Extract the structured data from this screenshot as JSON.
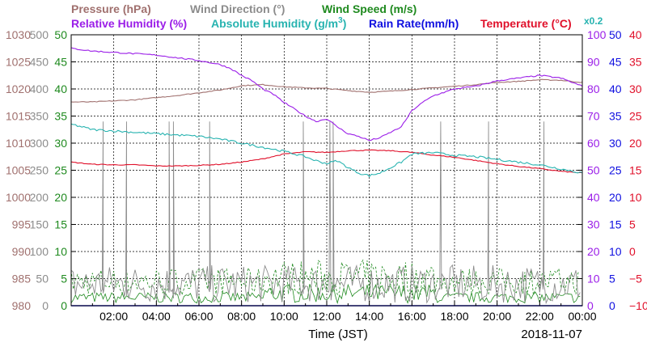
{
  "legend": {
    "pressure": {
      "label": "Pressure (hPa)",
      "color": "#a0706e"
    },
    "wind_direction": {
      "label": "Wind Direction (°)",
      "color": "#8c8c8c"
    },
    "wind_speed": {
      "label": "Wind Speed (m/s)",
      "color": "#1f8a1f"
    },
    "relative_humidity": {
      "label": "Relative Humidity (%)",
      "color": "#9b1ee8"
    },
    "absolute_humidity_prefix": {
      "label": "Absolute Humidity (g/m",
      "color": "#27b3b0"
    },
    "absolute_humidity_sup": {
      "label": "3",
      "color": "#27b3b0"
    },
    "absolute_humidity_suffix": {
      "label": ")",
      "color": "#27b3b0"
    },
    "rain_rate": {
      "label": "Rain Rate(mm/h)",
      "color": "#1010e0"
    },
    "temperature": {
      "label": "Temperature (°C)",
      "color": "#e0102a"
    },
    "ah_scale": {
      "label": "x0.2",
      "color": "#27b3b0"
    }
  },
  "footer": {
    "xlabel": "Time (JST)",
    "date": "2018-11-07"
  },
  "chart_data": {
    "type": "line",
    "x_unit": "hours (JST)",
    "xlim": [
      0,
      24
    ],
    "x_ticks": [
      "02:00",
      "04:00",
      "06:00",
      "08:00",
      "10:00",
      "12:00",
      "14:00",
      "16:00",
      "18:00",
      "20:00",
      "22:00",
      "00:00"
    ],
    "grid": true,
    "axes": {
      "pressure": {
        "range": [
          980,
          1030
        ],
        "ticks": [
          "1030",
          "1025",
          "1020",
          "1015",
          "1010",
          "1005",
          "1000",
          "995",
          "990",
          "985",
          "980"
        ],
        "color": "#a0706e"
      },
      "wind_direction": {
        "range": [
          0,
          500
        ],
        "ticks": [
          "500",
          "450",
          "400",
          "350",
          "300",
          "250",
          "200",
          "150",
          "100",
          "50",
          "0"
        ],
        "color": "#8c8c8c"
      },
      "wind_speed": {
        "range": [
          0,
          50
        ],
        "ticks": [
          "50",
          "45",
          "40",
          "35",
          "30",
          "25",
          "20",
          "15",
          "10",
          "5",
          "0"
        ],
        "color": "#1f8a1f"
      },
      "humidity": {
        "range": [
          0,
          100
        ],
        "ticks": [
          "100",
          "90",
          "80",
          "70",
          "60",
          "50",
          "40",
          "30",
          "20",
          "10",
          "0"
        ],
        "color": "#9b1ee8"
      },
      "rain_rate": {
        "range": [
          0,
          50
        ],
        "ticks": [
          "50",
          "45",
          "40",
          "35",
          "30",
          "25",
          "20",
          "15",
          "10",
          "5",
          "0"
        ],
        "color": "#1010e0"
      },
      "temperature": {
        "range": [
          -10,
          40
        ],
        "ticks": [
          "40",
          "35",
          "30",
          "25",
          "20",
          "15",
          "10",
          "5",
          "0",
          "−5",
          "−10"
        ],
        "color": "#e0102a"
      }
    },
    "series": [
      {
        "name": "Pressure (hPa)",
        "axis": "pressure",
        "color": "#a0706e",
        "points": [
          [
            0,
            1017.6
          ],
          [
            1,
            1017.6
          ],
          [
            2,
            1017.8
          ],
          [
            3,
            1018.0
          ],
          [
            4,
            1018.4
          ],
          [
            5,
            1018.8
          ],
          [
            6,
            1019.3
          ],
          [
            7,
            1019.8
          ],
          [
            8,
            1020.6
          ],
          [
            9,
            1020.8
          ],
          [
            10,
            1020.4
          ],
          [
            11,
            1020.2
          ],
          [
            12,
            1020.1
          ],
          [
            13,
            1019.7
          ],
          [
            14,
            1019.4
          ],
          [
            15,
            1019.6
          ],
          [
            16,
            1019.9
          ],
          [
            17,
            1020.2
          ],
          [
            18,
            1020.5
          ],
          [
            19,
            1020.8
          ],
          [
            20,
            1021.2
          ],
          [
            21,
            1021.4
          ],
          [
            22,
            1021.7
          ],
          [
            23,
            1021.6
          ],
          [
            24,
            1021.2
          ]
        ]
      },
      {
        "name": "Relative Humidity (%)",
        "axis": "humidity",
        "color": "#9b1ee8",
        "points": [
          [
            0,
            95
          ],
          [
            1,
            94
          ],
          [
            2,
            93.5
          ],
          [
            3,
            93
          ],
          [
            4,
            92.5
          ],
          [
            5,
            91.5
          ],
          [
            6,
            90.5
          ],
          [
            7,
            89
          ],
          [
            7.5,
            87.5
          ],
          [
            8,
            85
          ],
          [
            8.5,
            83
          ],
          [
            9,
            80
          ],
          [
            9.5,
            78
          ],
          [
            10,
            75
          ],
          [
            10.5,
            72.5
          ],
          [
            11,
            70
          ],
          [
            11.5,
            68
          ],
          [
            12,
            69
          ],
          [
            12.5,
            66
          ],
          [
            13,
            63.5
          ],
          [
            13.5,
            62.5
          ],
          [
            14,
            61
          ],
          [
            14.5,
            62
          ],
          [
            15,
            64
          ],
          [
            15.5,
            66
          ],
          [
            16,
            72
          ],
          [
            16.5,
            75
          ],
          [
            17,
            77.5
          ],
          [
            18,
            80
          ],
          [
            19,
            81
          ],
          [
            20,
            83
          ],
          [
            21,
            84
          ],
          [
            22,
            85
          ],
          [
            23,
            84
          ],
          [
            24,
            81
          ]
        ]
      },
      {
        "name": "Absolute Humidity (g/m³) x0.2",
        "axis": "humidity",
        "color": "#27b3b0",
        "points": [
          [
            0,
            67
          ],
          [
            1,
            65
          ],
          [
            2,
            64.5
          ],
          [
            3,
            64
          ],
          [
            4,
            63.5
          ],
          [
            5,
            63
          ],
          [
            6,
            62.5
          ],
          [
            7,
            61.5
          ],
          [
            8,
            60
          ],
          [
            9,
            58.5
          ],
          [
            10,
            57
          ],
          [
            11,
            55
          ],
          [
            11.5,
            53.5
          ],
          [
            12,
            52.5
          ],
          [
            12.5,
            53.5
          ],
          [
            13,
            51
          ],
          [
            13.5,
            49
          ],
          [
            14,
            48
          ],
          [
            14.5,
            49
          ],
          [
            15,
            51
          ],
          [
            15.5,
            53
          ],
          [
            16,
            56
          ],
          [
            17,
            56.5
          ],
          [
            18,
            55.5
          ],
          [
            19,
            55
          ],
          [
            20,
            54
          ],
          [
            21,
            53
          ],
          [
            22,
            52
          ],
          [
            23,
            50.5
          ],
          [
            24,
            49
          ]
        ]
      },
      {
        "name": "Temperature (°C)",
        "axis": "temperature",
        "color": "#e0102a",
        "points": [
          [
            0,
            16.5
          ],
          [
            1,
            16.1
          ],
          [
            2,
            16.0
          ],
          [
            3,
            16.0
          ],
          [
            4,
            15.8
          ],
          [
            5,
            15.8
          ],
          [
            6,
            15.9
          ],
          [
            7,
            16.1
          ],
          [
            8,
            16.5
          ],
          [
            9,
            17.1
          ],
          [
            10,
            18.0
          ],
          [
            11,
            18.4
          ],
          [
            12,
            18.3
          ],
          [
            13,
            18.6
          ],
          [
            14,
            18.7
          ],
          [
            15,
            18.6
          ],
          [
            16,
            18.3
          ],
          [
            17,
            17.8
          ],
          [
            18,
            17.4
          ],
          [
            19,
            16.8
          ],
          [
            20,
            16.2
          ],
          [
            21,
            15.7
          ],
          [
            22,
            15.3
          ],
          [
            23,
            14.8
          ],
          [
            24,
            14.5
          ]
        ]
      },
      {
        "name": "Wind Direction (°)",
        "axis": "wind_direction",
        "color": "#8c8c8c",
        "spikes": [
          [
            1.5,
            340
          ],
          [
            2.6,
            340
          ],
          [
            4.6,
            340
          ],
          [
            4.8,
            340
          ],
          [
            6.5,
            340
          ],
          [
            10.9,
            340
          ],
          [
            12.15,
            340
          ],
          [
            12.3,
            340
          ],
          [
            17.35,
            340
          ],
          [
            19.6,
            340
          ],
          [
            22.2,
            340
          ]
        ],
        "baseline_range": [
          5,
          75
        ]
      },
      {
        "name": "Wind Speed (m/s)",
        "axis": "wind_speed",
        "color": "#1f8a1f",
        "range_mean": [
          0.5,
          2.5
        ],
        "range_max": [
          2,
          7
        ]
      },
      {
        "name": "Rain Rate(mm/h)",
        "axis": "rain_rate",
        "color": "#1010e0",
        "points": [
          [
            0,
            0
          ],
          [
            24,
            0
          ]
        ]
      }
    ]
  }
}
